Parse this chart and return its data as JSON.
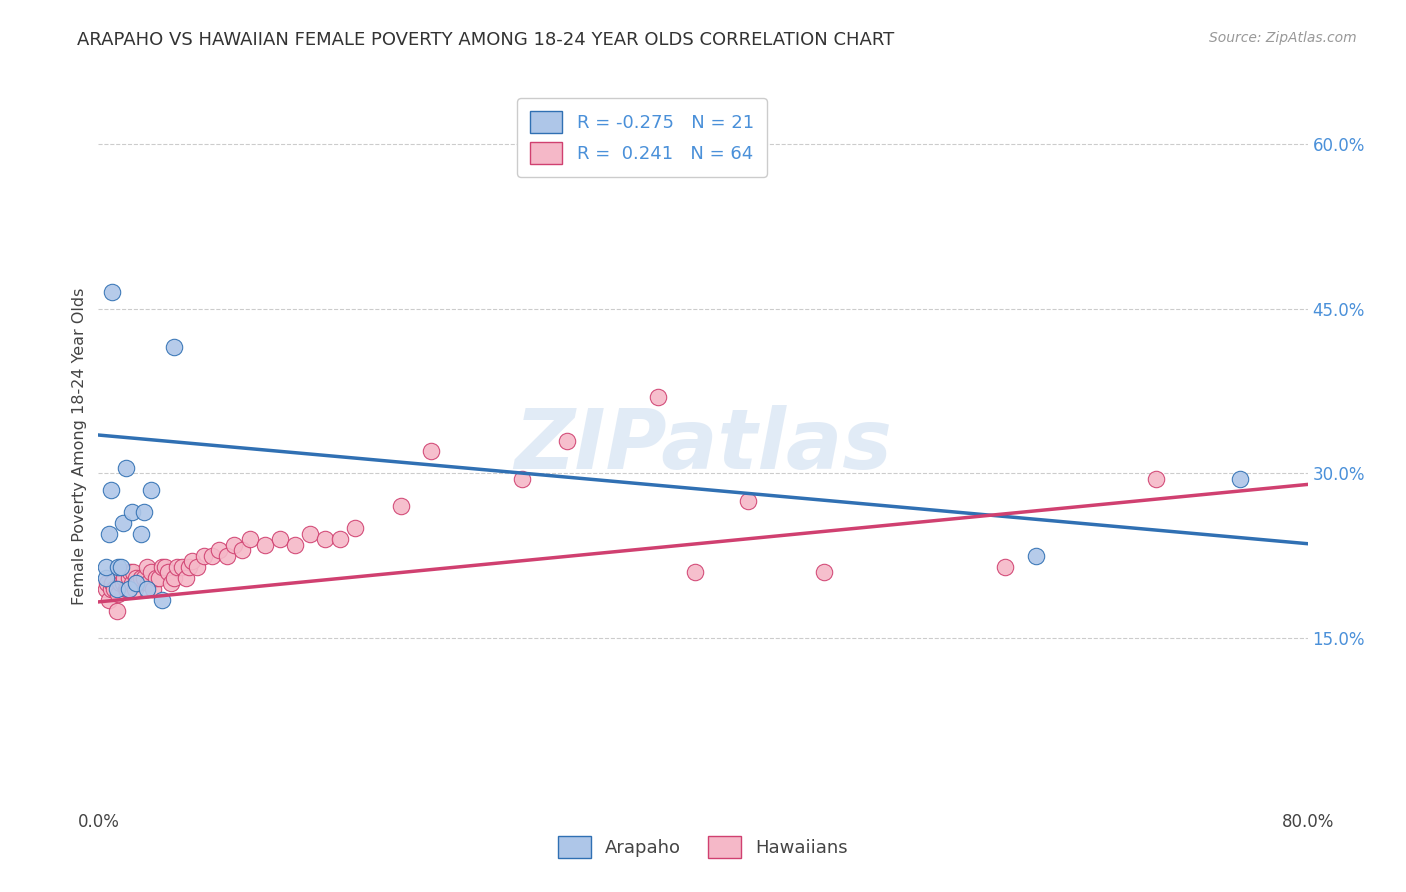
{
  "title": "ARAPAHO VS HAWAIIAN FEMALE POVERTY AMONG 18-24 YEAR OLDS CORRELATION CHART",
  "source": "Source: ZipAtlas.com",
  "ylabel": "Female Poverty Among 18-24 Year Olds",
  "xlim": [
    0.0,
    0.8
  ],
  "ylim": [
    0.0,
    0.65
  ],
  "yticks_right": [
    0.15,
    0.3,
    0.45,
    0.6
  ],
  "ytick_labels_right": [
    "15.0%",
    "30.0%",
    "45.0%",
    "60.0%"
  ],
  "arapaho_R": -0.275,
  "arapaho_N": 21,
  "hawaiian_R": 0.241,
  "hawaiian_N": 64,
  "arapaho_color": "#aec6e8",
  "arapaho_line_color": "#3070b3",
  "hawaiian_color": "#f5b8c8",
  "hawaiian_line_color": "#d04070",
  "watermark": "ZIPatlas",
  "ara_line_x0": 0.0,
  "ara_line_y0": 0.335,
  "ara_line_x1": 0.8,
  "ara_line_y1": 0.236,
  "haw_line_x0": 0.0,
  "haw_line_y0": 0.183,
  "haw_line_x1": 0.8,
  "haw_line_y1": 0.29,
  "arapaho_x": [
    0.005,
    0.005,
    0.007,
    0.008,
    0.009,
    0.012,
    0.013,
    0.015,
    0.016,
    0.018,
    0.02,
    0.022,
    0.025,
    0.028,
    0.03,
    0.032,
    0.035,
    0.042,
    0.05,
    0.62,
    0.755
  ],
  "arapaho_y": [
    0.205,
    0.215,
    0.245,
    0.285,
    0.465,
    0.195,
    0.215,
    0.215,
    0.255,
    0.305,
    0.195,
    0.265,
    0.2,
    0.245,
    0.265,
    0.195,
    0.285,
    0.185,
    0.415,
    0.225,
    0.295
  ],
  "hawaiian_x": [
    0.005,
    0.006,
    0.007,
    0.008,
    0.009,
    0.01,
    0.012,
    0.013,
    0.014,
    0.015,
    0.016,
    0.017,
    0.018,
    0.019,
    0.02,
    0.021,
    0.022,
    0.023,
    0.024,
    0.025,
    0.026,
    0.028,
    0.03,
    0.032,
    0.033,
    0.035,
    0.036,
    0.038,
    0.04,
    0.042,
    0.044,
    0.046,
    0.048,
    0.05,
    0.052,
    0.055,
    0.058,
    0.06,
    0.062,
    0.065,
    0.07,
    0.075,
    0.08,
    0.085,
    0.09,
    0.095,
    0.1,
    0.11,
    0.12,
    0.13,
    0.14,
    0.15,
    0.16,
    0.17,
    0.2,
    0.22,
    0.28,
    0.31,
    0.37,
    0.395,
    0.43,
    0.48,
    0.6,
    0.7
  ],
  "hawaiian_y": [
    0.195,
    0.2,
    0.185,
    0.195,
    0.2,
    0.195,
    0.175,
    0.19,
    0.2,
    0.21,
    0.2,
    0.205,
    0.195,
    0.195,
    0.205,
    0.21,
    0.2,
    0.21,
    0.195,
    0.205,
    0.2,
    0.205,
    0.205,
    0.215,
    0.2,
    0.21,
    0.195,
    0.205,
    0.205,
    0.215,
    0.215,
    0.21,
    0.2,
    0.205,
    0.215,
    0.215,
    0.205,
    0.215,
    0.22,
    0.215,
    0.225,
    0.225,
    0.23,
    0.225,
    0.235,
    0.23,
    0.24,
    0.235,
    0.24,
    0.235,
    0.245,
    0.24,
    0.24,
    0.25,
    0.27,
    0.32,
    0.295,
    0.33,
    0.37,
    0.21,
    0.275,
    0.21,
    0.215,
    0.295
  ]
}
